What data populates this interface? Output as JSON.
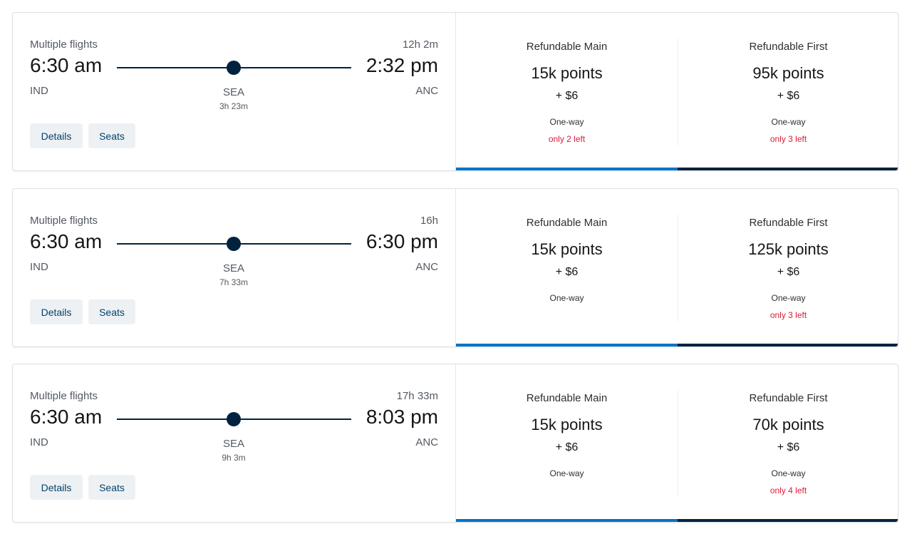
{
  "colors": {
    "main_bar": "#0074c8",
    "first_bar": "#01223f",
    "scarcity": "#e31937"
  },
  "buttons": {
    "details": "Details",
    "seats": "Seats"
  },
  "flights": [
    {
      "label": "Multiple flights",
      "duration": "12h 2m",
      "depart_time": "6:30 am",
      "arrive_time": "2:32 pm",
      "origin": "IND",
      "destination": "ANC",
      "stop": "SEA",
      "layover": "3h 23m",
      "fares": [
        {
          "cabin": "Refundable Main",
          "points": "15k points",
          "cash": "+ $6",
          "trip": "One-way",
          "seats_left": "only 2 left"
        },
        {
          "cabin": "Refundable First",
          "points": "95k points",
          "cash": "+ $6",
          "trip": "One-way",
          "seats_left": "only 3 left"
        }
      ]
    },
    {
      "label": "Multiple flights",
      "duration": "16h",
      "depart_time": "6:30 am",
      "arrive_time": "6:30 pm",
      "origin": "IND",
      "destination": "ANC",
      "stop": "SEA",
      "layover": "7h 33m",
      "fares": [
        {
          "cabin": "Refundable Main",
          "points": "15k points",
          "cash": "+ $6",
          "trip": "One-way"
        },
        {
          "cabin": "Refundable First",
          "points": "125k points",
          "cash": "+ $6",
          "trip": "One-way",
          "seats_left": "only 3 left"
        }
      ]
    },
    {
      "label": "Multiple flights",
      "duration": "17h 33m",
      "depart_time": "6:30 am",
      "arrive_time": "8:03 pm",
      "origin": "IND",
      "destination": "ANC",
      "stop": "SEA",
      "layover": "9h 3m",
      "fares": [
        {
          "cabin": "Refundable Main",
          "points": "15k points",
          "cash": "+ $6",
          "trip": "One-way"
        },
        {
          "cabin": "Refundable First",
          "points": "70k points",
          "cash": "+ $6",
          "trip": "One-way",
          "seats_left": "only 4 left"
        }
      ]
    }
  ]
}
